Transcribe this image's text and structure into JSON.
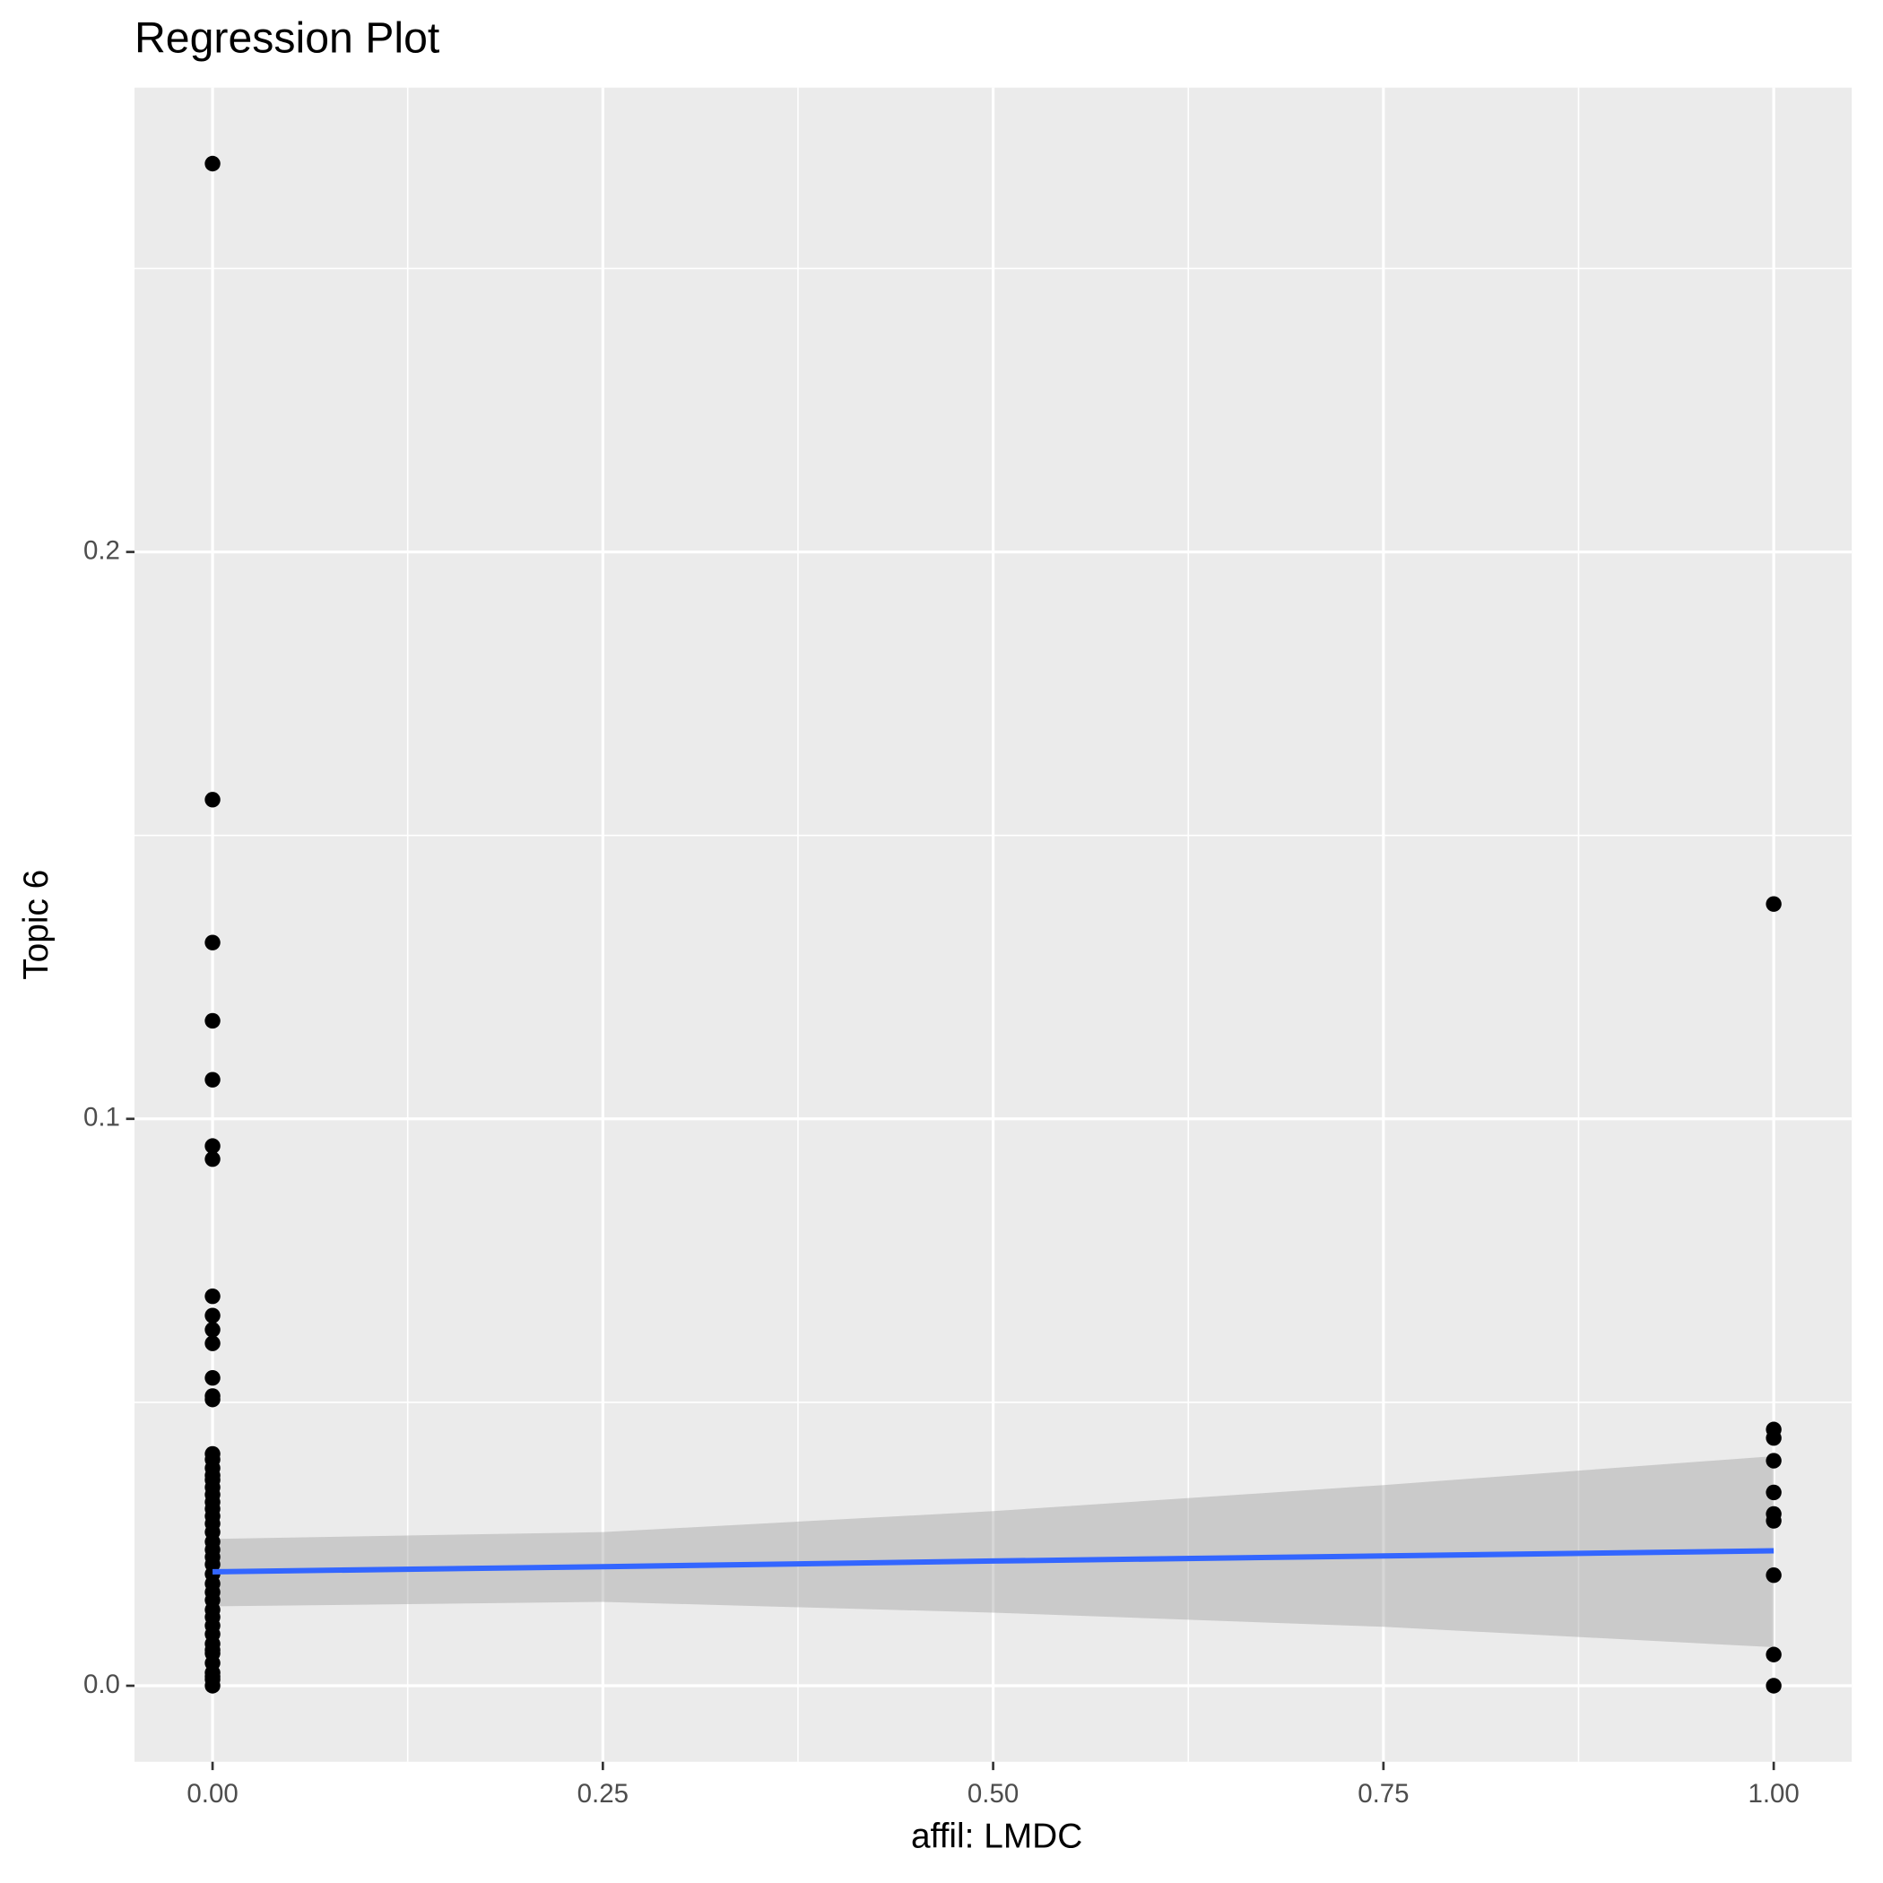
{
  "chart_data": {
    "type": "scatter",
    "title": "Regression Plot",
    "x_label": "affil: LMDC",
    "y_label": "Topic 6",
    "xlim": [
      -0.05,
      1.05
    ],
    "ylim": [
      -0.0134,
      0.2819
    ],
    "xticks": [
      {
        "value": 0,
        "label": "0.00"
      },
      {
        "value": 0.25,
        "label": "0.25"
      },
      {
        "value": 0.5,
        "label": "0.50"
      },
      {
        "value": 0.75,
        "label": "0.75"
      },
      {
        "value": 1,
        "label": "1.00"
      }
    ],
    "yticks": [
      {
        "value": 0,
        "label": "0.0"
      },
      0.1,
      0.2
    ],
    "grid": true,
    "points": {
      "color": "#000000",
      "x": [
        0,
        0,
        0,
        0,
        0,
        0,
        0,
        0,
        0,
        0,
        0,
        0,
        0,
        0,
        0,
        0,
        0,
        0,
        0,
        0,
        0,
        0,
        0,
        0,
        0,
        0,
        0,
        0,
        0,
        0,
        0,
        0,
        0,
        0,
        0,
        0,
        0,
        0,
        0,
        0,
        0,
        0,
        0,
        0,
        0,
        0,
        1,
        1,
        1,
        1,
        1,
        1,
        1,
        1,
        1,
        1
      ],
      "y": [
        0.2685,
        0.1563,
        0.1311,
        0.1173,
        0.1069,
        0.0952,
        0.0929,
        0.0687,
        0.0653,
        0.0628,
        0.0604,
        0.0543,
        0.0511,
        0.0505,
        0.0409,
        0.0399,
        0.0384,
        0.0371,
        0.0363,
        0.035,
        0.0337,
        0.0324,
        0.0312,
        0.0299,
        0.0286,
        0.0271,
        0.0254,
        0.024,
        0.0227,
        0.0214,
        0.0197,
        0.018,
        0.0165,
        0.0151,
        0.0134,
        0.0121,
        0.0106,
        0.0091,
        0.0074,
        0.0057,
        0.004,
        0.0023,
        0.0011,
        0,
        0.0016,
        0.0063,
        0.1379,
        0.0452,
        0.0437,
        0.0397,
        0.0341,
        0.0303,
        0.0291,
        0.0195,
        0.0055,
        0
      ]
    },
    "fit": {
      "color": "#3366ff",
      "band_color": "#999999",
      "x": [
        0,
        0.25,
        0.5,
        0.75,
        1
      ],
      "y": [
        0.0201,
        0.021,
        0.022,
        0.0229,
        0.0238
      ],
      "lower": [
        0.014,
        0.0148,
        0.0129,
        0.0104,
        0.0068
      ],
      "upper": [
        0.0259,
        0.0271,
        0.0308,
        0.0354,
        0.0405
      ]
    }
  }
}
